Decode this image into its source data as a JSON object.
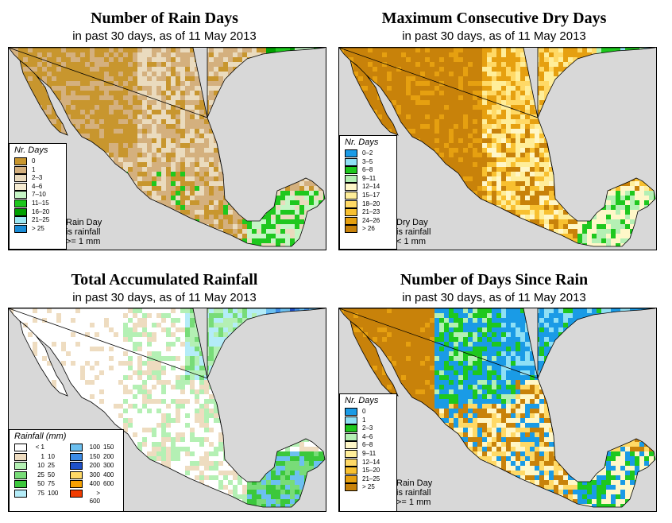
{
  "panels": [
    {
      "id": "rain-days",
      "title": "Number of Rain Days",
      "subtitle": "in past 30 days, as of  11 May 2013",
      "legend_title": "Nr. Days",
      "legend": [
        {
          "label": "0",
          "color": "#c8962e"
        },
        {
          "label": "1",
          "color": "#d4b07e"
        },
        {
          "label": "2–3",
          "color": "#eadbbe"
        },
        {
          "label": "4–6",
          "color": "#f6ecd2"
        },
        {
          "label": "7–10",
          "color": "#c6f5c6"
        },
        {
          "label": "11–15",
          "color": "#1ec81e"
        },
        {
          "label": "16–20",
          "color": "#00a000"
        },
        {
          "label": "21–25",
          "color": "#9be6f2"
        },
        {
          "label": "> 25",
          "color": "#1a8cd6"
        }
      ],
      "note": [
        "Rain Day",
        "is rainfall",
        ">= 1 mm"
      ]
    },
    {
      "id": "dry-days",
      "title": "Maximum Consecutive Dry Days",
      "subtitle": "in past 30 days, as of  11 May 2013",
      "legend_title": "Nr. Days",
      "legend": [
        {
          "label": "0–2",
          "color": "#1a9be6"
        },
        {
          "label": "3–5",
          "color": "#8fe0f5"
        },
        {
          "label": "6–8",
          "color": "#1ec81e"
        },
        {
          "label": "9–11",
          "color": "#b4f0b4"
        },
        {
          "label": "12–14",
          "color": "#fff7c8"
        },
        {
          "label": "15–17",
          "color": "#ffee9a"
        },
        {
          "label": "18–20",
          "color": "#ffd966"
        },
        {
          "label": "21–23",
          "color": "#f8c030"
        },
        {
          "label": "24–26",
          "color": "#e6a010"
        },
        {
          "label": "> 26",
          "color": "#c8820a"
        }
      ],
      "note": [
        "Dry Day",
        "is rainfall",
        "< 1 mm"
      ]
    },
    {
      "id": "rainfall",
      "title": "Total Accumulated Rainfall",
      "subtitle": "in past 30 days, as of  11 May 2013",
      "legend_title": "Rainfall (mm)",
      "legend_left": [
        {
          "lo": "< 1",
          "hi": "",
          "color": "#ffffff"
        },
        {
          "lo": "1",
          "hi": "10",
          "color": "#eedcc0"
        },
        {
          "lo": "10",
          "hi": "25",
          "color": "#b4f0b4"
        },
        {
          "lo": "25",
          "hi": "50",
          "color": "#78dc78"
        },
        {
          "lo": "50",
          "hi": "75",
          "color": "#3cc83c"
        },
        {
          "lo": "75",
          "hi": "100",
          "color": "#b4ecf8"
        }
      ],
      "legend_right": [
        {
          "lo": "100",
          "hi": "150",
          "color": "#6cc0f0"
        },
        {
          "lo": "150",
          "hi": "200",
          "color": "#3c8ce6"
        },
        {
          "lo": "200",
          "hi": "300",
          "color": "#1e50c8"
        },
        {
          "lo": "300",
          "hi": "400",
          "color": "#ffd966"
        },
        {
          "lo": "400",
          "hi": "600",
          "color": "#f5a000"
        },
        {
          "lo": "> 600",
          "hi": "",
          "color": "#f03c00"
        }
      ]
    },
    {
      "id": "since-rain",
      "title": "Number of Days Since Rain",
      "subtitle": "in past 30 days, as of  11 May 2013",
      "legend_title": "Nr. Days",
      "legend": [
        {
          "label": "0",
          "color": "#1a9be6"
        },
        {
          "label": "1",
          "color": "#8fe0f5"
        },
        {
          "label": "2–3",
          "color": "#1ec81e"
        },
        {
          "label": "4–6",
          "color": "#b4f0b4"
        },
        {
          "label": "6–8",
          "color": "#fff7c8"
        },
        {
          "label": "9–11",
          "color": "#ffee9a"
        },
        {
          "label": "12–14",
          "color": "#ffd966"
        },
        {
          "label": "15–20",
          "color": "#f8c030"
        },
        {
          "label": "21–25",
          "color": "#e6a010"
        },
        {
          "label": "> 25",
          "color": "#c8820a"
        }
      ],
      "note": [
        "Rain Day",
        "is rainfall",
        ">= 1 mm"
      ]
    }
  ]
}
